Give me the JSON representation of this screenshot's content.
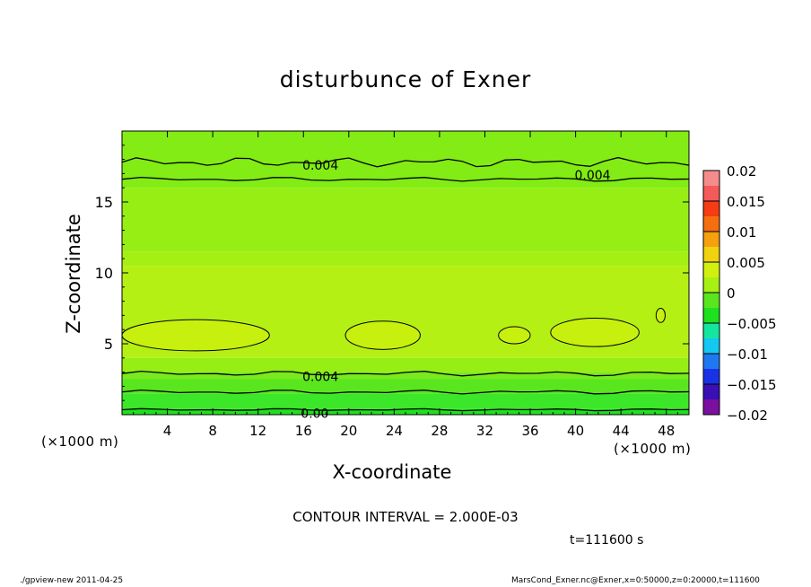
{
  "chart_data": {
    "type": "heatmap",
    "title": "disturbunce of Exner",
    "xlabel": "X-coordinate",
    "ylabel": "Z-coordinate",
    "x_unit": "(×1000 m)",
    "y_unit": "(×1000 m)",
    "xlim": [
      0,
      50
    ],
    "ylim": [
      0,
      20
    ],
    "x_ticks": [
      4,
      8,
      12,
      16,
      20,
      24,
      28,
      32,
      36,
      40,
      44,
      48
    ],
    "y_ticks": [
      5,
      10,
      15
    ],
    "colorbar": {
      "levels": [
        -0.02,
        -0.015,
        -0.01,
        -0.005,
        0,
        0.005,
        0.01,
        0.015,
        0.02
      ],
      "tick_labels": [
        "0.02",
        "0.015",
        "0.01",
        "0.005",
        "0",
        "−0.005",
        "−0.01",
        "−0.015",
        "−0.02"
      ],
      "colors": [
        "#7a0fa0",
        "#3a0fb4",
        "#1a32e6",
        "#1f78f0",
        "#14c8f0",
        "#14e6a0",
        "#1ee01e",
        "#5ae61e",
        "#a8f014",
        "#d2f00f",
        "#f0d20f",
        "#f5a00f",
        "#f56e0f",
        "#f53c14",
        "#f55a5a",
        "#f58c8c"
      ]
    },
    "bands": [
      {
        "z_range": [
          0,
          0.4
        ],
        "value": -0.002,
        "color": "#1ee01e"
      },
      {
        "z_range": [
          0.4,
          1.5
        ],
        "value": 0.0,
        "color": "#3ce628"
      },
      {
        "z_range": [
          1.5,
          2.5
        ],
        "value": 0.001,
        "color": "#5ae61e"
      },
      {
        "z_range": [
          2.5,
          3.0
        ],
        "value": 0.002,
        "color": "#78ea1e"
      },
      {
        "z_range": [
          3.0,
          4.0
        ],
        "value": 0.004,
        "color": "#96ee14"
      },
      {
        "z_range": [
          4.0,
          10.5
        ],
        "value": 0.005,
        "color": "#b4f014"
      },
      {
        "z_range": [
          10.5,
          11.5
        ],
        "value": 0.005,
        "color": "#a5f014"
      },
      {
        "z_range": [
          11.5,
          16.0
        ],
        "value": 0.004,
        "color": "#96ee14"
      },
      {
        "z_range": [
          16.0,
          20.0
        ],
        "value": 0.004,
        "color": "#82ec14"
      }
    ],
    "blobs": [
      {
        "x_center": 6.5,
        "z_center": 5.6,
        "x_half": 6.5,
        "z_half": 1.1,
        "value": 0.006
      },
      {
        "x_center": 23.0,
        "z_center": 5.6,
        "x_half": 3.3,
        "z_half": 1.0,
        "value": 0.006
      },
      {
        "x_center": 34.6,
        "z_center": 5.6,
        "x_half": 1.4,
        "z_half": 0.6,
        "value": 0.006
      },
      {
        "x_center": 41.7,
        "z_center": 5.8,
        "x_half": 3.9,
        "z_half": 1.0,
        "value": 0.006
      },
      {
        "x_center": 47.5,
        "z_center": 7.0,
        "x_half": 0.4,
        "z_half": 0.5,
        "value": 0.006
      }
    ],
    "contour_labels": [
      {
        "text": "0.004",
        "x": 17.5,
        "z": 17.6
      },
      {
        "text": "0.004",
        "x": 41.5,
        "z": 16.9
      },
      {
        "text": "0.004",
        "x": 17.5,
        "z": 2.7
      },
      {
        "text": "0.00",
        "x": 17.0,
        "z": 0.1
      }
    ],
    "contour_interval_note": "CONTOUR INTERVAL = 2.000E-03",
    "time_note": "t=111600 s",
    "footer_left": "./gpview-new   2011-04-25",
    "footer_right": "MarsCond_Exner.nc@Exner,x=0:50000,z=0:20000,t=111600"
  }
}
